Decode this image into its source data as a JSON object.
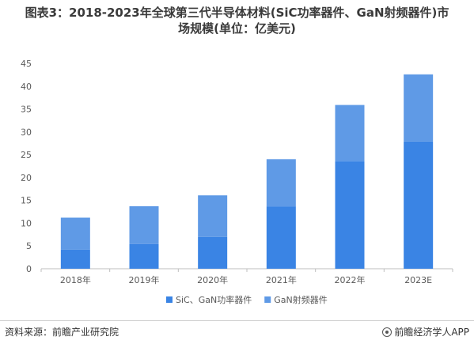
{
  "title": {
    "line1": "图表3：2018-2023年全球第三代半导体材料(SiC功率器件、GaN射频器件)市",
    "line2": "场规模(单位：亿美元)"
  },
  "footer": {
    "source": "资料来源：前瞻产业研究院",
    "brand": "前瞻经济学人APP",
    "brand_icon": "qianzhan-logo-icon"
  },
  "colors": {
    "sic": "#3a84e4",
    "gan": "#5f9ae6",
    "axis": "#bfbfbf",
    "text": "#595959"
  },
  "chart_data": {
    "type": "bar",
    "stacked": true,
    "categories": [
      "2018年",
      "2019年",
      "2020年",
      "2021年",
      "2022年",
      "2023E"
    ],
    "series": [
      {
        "name": "SiC、GaN功率器件",
        "values": [
          4.2,
          5.4,
          7.0,
          13.7,
          23.6,
          27.8
        ]
      },
      {
        "name": "GaN射频器件",
        "values": [
          7.0,
          8.3,
          9.1,
          10.3,
          12.3,
          14.8
        ]
      }
    ],
    "ylim": [
      0,
      45
    ],
    "yticks": [
      0,
      5,
      10,
      15,
      20,
      25,
      30,
      35,
      40,
      45
    ],
    "grid": false,
    "legend_position": "bottom"
  }
}
